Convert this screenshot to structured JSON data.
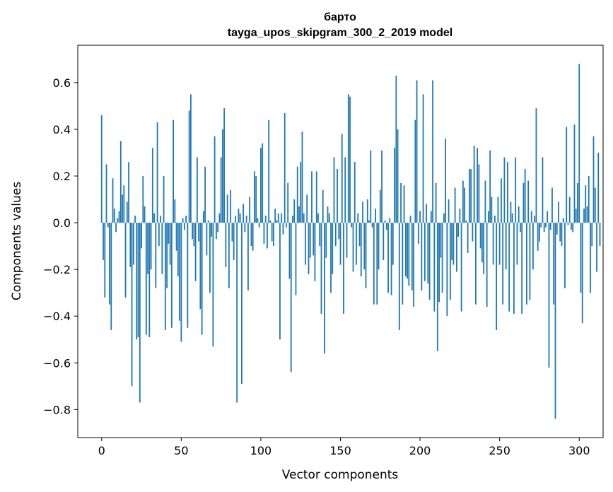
{
  "chart_data": {
    "type": "bar",
    "title": "барто",
    "subtitle": "tayga_upos_skipgram_300_2_2019 model",
    "xlabel": "Vector components",
    "ylabel": "Components values",
    "xlim": [
      -15,
      315
    ],
    "ylim": [
      -0.92,
      0.76
    ],
    "xticks": [
      0,
      50,
      100,
      150,
      200,
      250,
      300
    ],
    "yticks": [
      -0.8,
      -0.6,
      -0.4,
      -0.2,
      0.0,
      0.2,
      0.4,
      0.6
    ],
    "ytick_labels": [
      "−0.8",
      "−0.6",
      "−0.4",
      "−0.2",
      "0.0",
      "0.2",
      "0.4",
      "0.6"
    ],
    "bar_color": "#1f77b4",
    "grid": false,
    "series": [
      {
        "values": [
          0.46,
          -0.16,
          -0.32,
          0.25,
          -0.02,
          -0.35,
          -0.46,
          0.19,
          0.06,
          -0.04,
          0.02,
          0.05,
          0.35,
          0.12,
          0.16,
          -0.32,
          0.09,
          0.26,
          -0.19,
          -0.7,
          -0.18,
          0.03,
          -0.5,
          -0.49,
          -0.77,
          -0.11,
          0.2,
          0.07,
          -0.48,
          -0.22,
          -0.49,
          -0.2,
          0.32,
          0.04,
          -0.28,
          0.43,
          -0.1,
          0.03,
          -0.22,
          0.2,
          -0.46,
          -0.28,
          -0.09,
          -0.18,
          -0.45,
          0.44,
          0.1,
          -0.12,
          -0.23,
          -0.42,
          -0.51,
          0.02,
          -0.03,
          0.03,
          -0.45,
          0.48,
          0.55,
          -0.07,
          -0.1,
          -0.25,
          0.28,
          -0.08,
          -0.37,
          -0.48,
          0.05,
          0.24,
          -0.14,
          0.01,
          -0.3,
          -0.06,
          -0.53,
          0.37,
          -0.07,
          -0.04,
          0.04,
          0.28,
          0.4,
          0.49,
          -0.19,
          0.12,
          -0.28,
          0.14,
          -0.08,
          -0.16,
          0.03,
          -0.77,
          0.06,
          0.04,
          -0.69,
          0.08,
          -0.04,
          0.03,
          -0.29,
          0.11,
          -0.1,
          -0.12,
          0.22,
          0.2,
          0.02,
          -0.02,
          0.32,
          0.34,
          -0.09,
          0.03,
          -0.11,
          0.44,
          0.01,
          -0.08,
          -0.1,
          0.06,
          0.01,
          0.04,
          -0.5,
          0.04,
          -0.05,
          0.47,
          -0.02,
          0.17,
          -0.24,
          -0.64,
          0.03,
          0.1,
          -0.31,
          0.24,
          0.07,
          0.26,
          0.39,
          0.04,
          -0.18,
          0.12,
          -0.22,
          -0.15,
          0.22,
          -0.14,
          -0.25,
          0.22,
          0.04,
          -0.1,
          -0.39,
          0.14,
          -0.56,
          -0.15,
          0.07,
          0.04,
          -0.3,
          -0.22,
          0.28,
          -0.1,
          0.23,
          -0.07,
          -0.18,
          0.38,
          -0.39,
          0.28,
          -0.15,
          0.55,
          0.54,
          -0.02,
          -0.21,
          0.26,
          -0.18,
          0.04,
          -0.1,
          -0.23,
          0.09,
          -0.2,
          -0.28,
          0.1,
          0.01,
          0.31,
          -0.02,
          -0.35,
          0.06,
          -0.35,
          -0.2,
          0.14,
          0.31,
          -0.16,
          0.01,
          -0.03,
          -0.3,
          0.02,
          -0.31,
          -0.18,
          0.32,
          0.63,
          0.4,
          -0.46,
          0.17,
          -0.35,
          0.16,
          -0.23,
          -0.24,
          -0.27,
          0.03,
          -0.29,
          -0.36,
          0.44,
          0.61,
          -0.09,
          0.05,
          -0.29,
          0.55,
          -0.25,
          0.08,
          -0.26,
          -0.33,
          0.05,
          0.61,
          -0.38,
          0.17,
          -0.55,
          -0.34,
          -0.15,
          -0.3,
          0.04,
          0.36,
          -0.4,
          0.1,
          -0.33,
          -0.16,
          -0.18,
          0.15,
          -0.21,
          -0.06,
          0.06,
          -0.38,
          0.18,
          0.15,
          0.01,
          -0.13,
          0.23,
          0.23,
          -0.08,
          0.33,
          -0.35,
          0.32,
          0.25,
          -0.11,
          -0.17,
          -0.22,
          0.18,
          -0.36,
          0.05,
          0.31,
          0.11,
          -0.18,
          0.03,
          -0.46,
          0.11,
          -0.18,
          0.19,
          -0.35,
          0.28,
          -0.2,
          0.26,
          -0.38,
          0.09,
          0.04,
          -0.39,
          0.28,
          -0.18,
          0.07,
          -0.04,
          -0.39,
          0.17,
          0.23,
          -0.35,
          0.18,
          -0.33,
          0.05,
          -0.2,
          0.03,
          0.49,
          -0.12,
          -0.08,
          -0.02,
          0.28,
          -0.04,
          -0.02,
          0.05,
          -0.62,
          -0.03,
          0.15,
          -0.35,
          -0.84,
          -0.05,
          0.09,
          -0.08,
          -0.1,
          0.02,
          -0.28,
          0.41,
          -0.01,
          0.11,
          -0.03,
          -0.04,
          0.42,
          0.06,
          0.17,
          0.68,
          -0.3,
          -0.43,
          0.06,
          0.16,
          0.07,
          0.2,
          -0.3,
          -0.1,
          0.37,
          0.15,
          -0.21,
          0.3,
          -0.1
        ]
      }
    ]
  }
}
